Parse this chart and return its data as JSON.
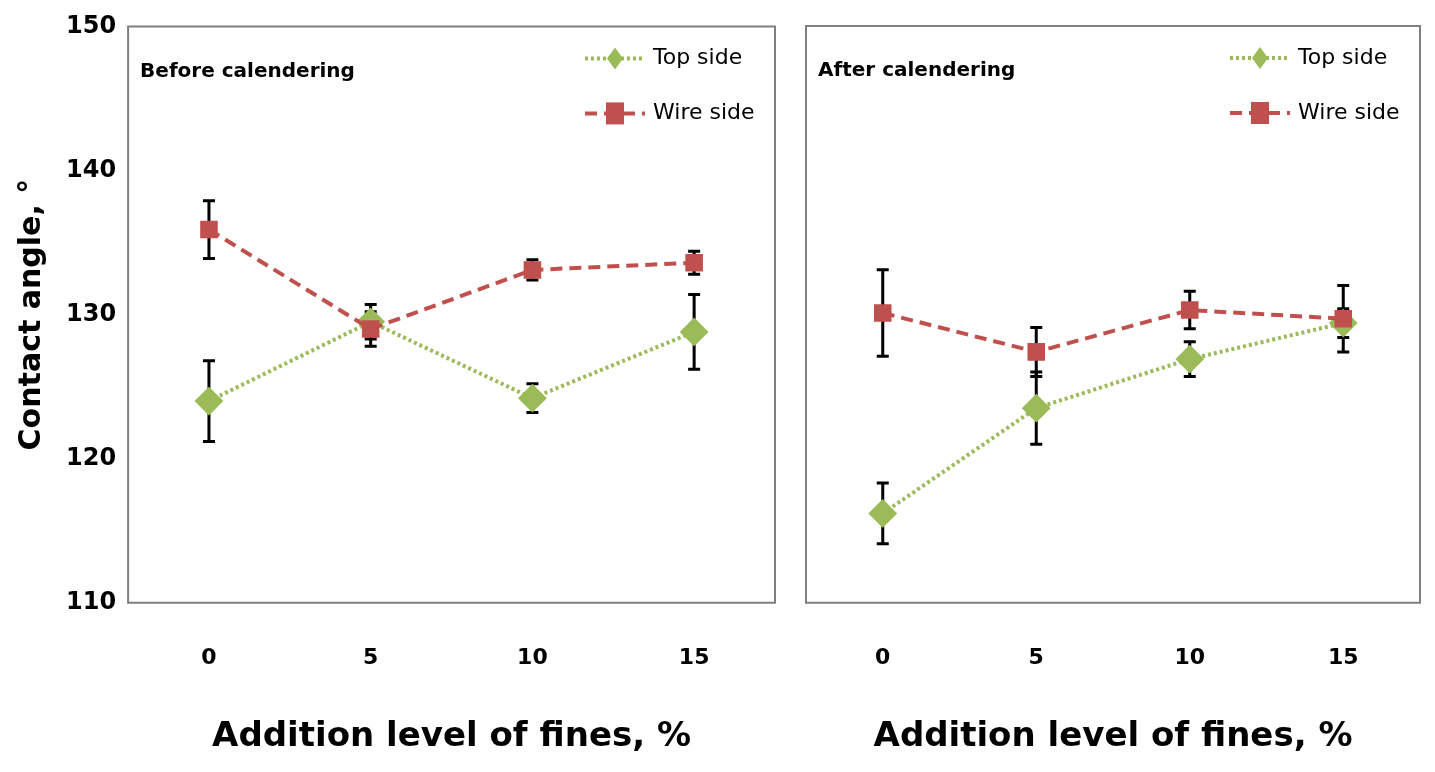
{
  "chart_data": [
    {
      "type": "line",
      "title": "Before calendering",
      "xlabel": "Addition level of fines, %",
      "ylabel": "Contact angle, °",
      "categories": [
        "0",
        "5",
        "10",
        "15"
      ],
      "ylim": [
        110,
        150
      ],
      "yticks": [
        110,
        120,
        130,
        140,
        150
      ],
      "grid": false,
      "legend": "top right",
      "series": [
        {
          "name": "Top side",
          "color": "#9bbb59",
          "marker": "diamond",
          "line_style": "dotted",
          "values": [
            124.0,
            129.5,
            124.2,
            128.8
          ],
          "errors": [
            2.8,
            1.2,
            1.0,
            2.6
          ]
        },
        {
          "name": "Wire side",
          "color": "#c0504d",
          "marker": "square",
          "line_style": "dashed",
          "values": [
            135.9,
            129.0,
            133.1,
            133.6
          ],
          "errors": [
            2.0,
            1.2,
            0.7,
            0.8
          ]
        }
      ]
    },
    {
      "type": "line",
      "title": "After calendering",
      "xlabel": "Addition level of fines, %",
      "categories": [
        "0",
        "5",
        "10",
        "15"
      ],
      "ylim": [
        110,
        150
      ],
      "tick_labels": "x",
      "grid": false,
      "legend": "top right",
      "series": [
        {
          "name": "Top side",
          "color": "#9bbb59",
          "marker": "diamond",
          "line_style": "dotted",
          "values": [
            116.2,
            123.5,
            126.9,
            129.4
          ],
          "errors": [
            2.1,
            2.5,
            1.2,
            1.0
          ]
        },
        {
          "name": "Wire side",
          "color": "#c0504d",
          "marker": "square",
          "line_style": "dashed",
          "values": [
            130.1,
            127.4,
            130.3,
            129.7
          ],
          "errors": [
            3.0,
            1.7,
            1.3,
            2.3
          ]
        }
      ]
    }
  ]
}
